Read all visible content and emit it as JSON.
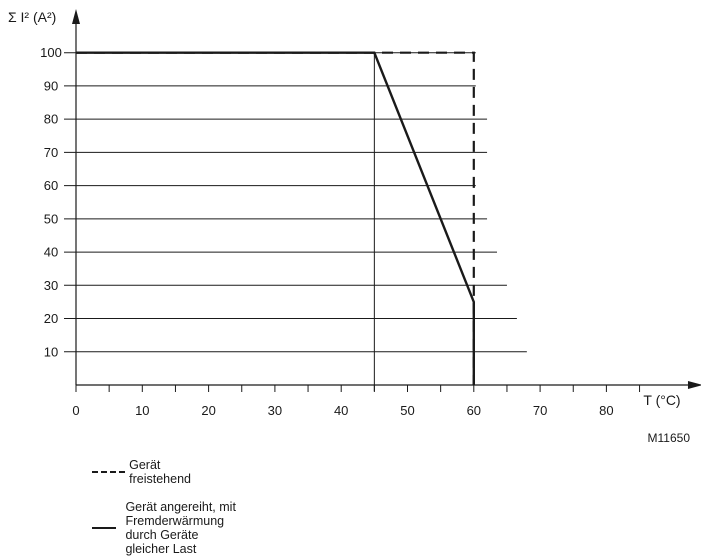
{
  "chart_data": {
    "type": "line",
    "ylabel": "Σ  I² (A²)",
    "xlabel": "T (°C)",
    "code": "M11650",
    "xlim": [
      0,
      92
    ],
    "ylim": [
      0,
      105
    ],
    "xticks": [
      0,
      10,
      20,
      30,
      40,
      50,
      60,
      70,
      80
    ],
    "xminor": [
      5,
      15,
      25,
      35,
      45,
      55,
      65,
      75,
      85
    ],
    "yticks": [
      10,
      20,
      30,
      40,
      50,
      60,
      70,
      80,
      90,
      100
    ],
    "ygrid_extent": [
      {
        "y": 10,
        "x_end": 68
      },
      {
        "y": 20,
        "x_end": 66.5
      },
      {
        "y": 30,
        "x_end": 65
      },
      {
        "y": 40,
        "x_end": 63.5
      },
      {
        "y": 50,
        "x_end": 62
      },
      {
        "y": 60,
        "x_end": 60.3
      },
      {
        "y": 70,
        "x_end": 62
      },
      {
        "y": 80,
        "x_end": 62
      },
      {
        "y": 90,
        "x_end": 60.3
      },
      {
        "y": 100,
        "x_end": 60.3
      }
    ],
    "vlines": [
      45
    ],
    "series": [
      {
        "name": "Gerät freistehend",
        "style": "dashed",
        "x": [
          0,
          60,
          60
        ],
        "y": [
          100,
          100,
          0
        ]
      },
      {
        "name": "Gerät angereiht, mit Fremderwärmung durch Geräte gleicher Last",
        "style": "solid",
        "x": [
          0,
          45,
          60,
          60
        ],
        "y": [
          100,
          100,
          25,
          0
        ]
      }
    ]
  },
  "legend": {
    "dashed_label": "Gerät freistehend",
    "solid_label_line1": "Gerät angereiht, mit Fremderwärmung",
    "solid_label_line2": "durch Geräte gleicher Last"
  }
}
